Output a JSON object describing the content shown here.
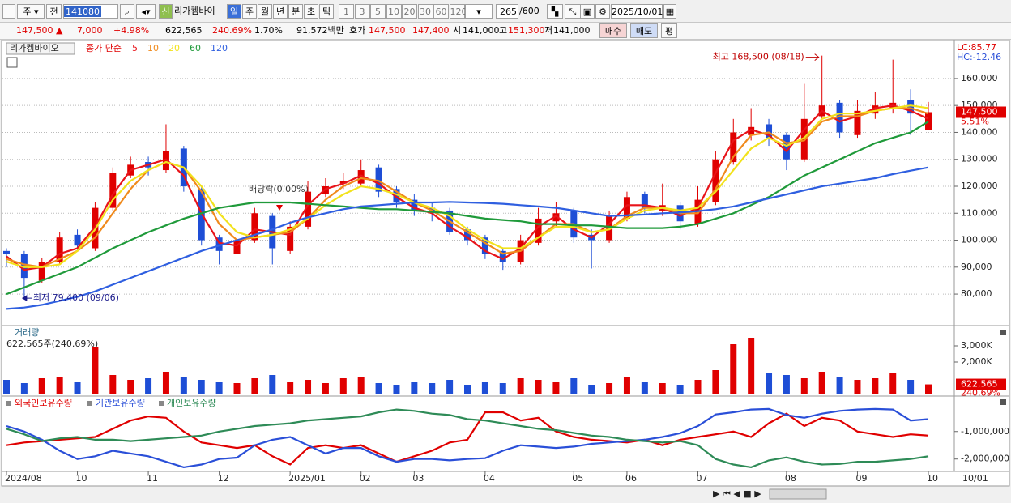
{
  "toolbar": {
    "period_button": "주",
    "view_button": "전",
    "code": "141080",
    "badge": "신",
    "name": "리가켐바이",
    "periods": [
      "일",
      "주",
      "월",
      "년",
      "분",
      "초",
      "틱"
    ],
    "intervals": [
      "1",
      "3",
      "5",
      "10",
      "20",
      "30",
      "60",
      "120"
    ],
    "count": "265",
    "count_max": "/600",
    "date": "2025/10/01"
  },
  "quote": {
    "price": "147,500 ▲",
    "change": "7,000",
    "change_pct": "+4.98%",
    "volume": "622,565",
    "volume_ratio": "240.69%",
    "turnover": "1.70%",
    "amount": "91,572백만",
    "ask_label": "호가",
    "ask": "147,500",
    "bid": "147,400",
    "open_label": "시",
    "open": "141,000",
    "high_label": "고",
    "high": "151,300",
    "low_label": "저",
    "low": "141,000",
    "buy": "매수",
    "sell": "매도",
    "avg": "평"
  },
  "chart_data": [
    {
      "type": "candlestick",
      "title": "리가켐바이오",
      "legend_title": "종가 단순",
      "categories": [
        "2024/08",
        null,
        null,
        null,
        "10",
        null,
        null,
        null,
        "11",
        null,
        null,
        null,
        "12",
        null,
        null,
        null,
        "2025/01",
        null,
        null,
        null,
        "02",
        null,
        null,
        "03",
        null,
        null,
        null,
        "04",
        null,
        null,
        null,
        null,
        "05",
        null,
        null,
        "06",
        null,
        null,
        null,
        "07",
        null,
        null,
        null,
        null,
        "08",
        null,
        null,
        null,
        "09",
        null,
        null,
        null,
        "10"
      ],
      "x_end_label": "10/01",
      "open": [
        96000,
        95000,
        85000,
        92000,
        102000,
        97000,
        112000,
        124000,
        129000,
        126000,
        134000,
        119000,
        101000,
        95000,
        100000,
        109000,
        96000,
        105000,
        117000,
        121000,
        121000,
        127000,
        119000,
        115000,
        112000,
        111000,
        104000,
        101000,
        96000,
        92000,
        99000,
        107000,
        111000,
        102000,
        100000,
        108000,
        117000,
        111000,
        113000,
        106000,
        114000,
        129000,
        139000,
        143000,
        139000,
        130000,
        146000,
        151000,
        139000,
        147000,
        149000,
        152000,
        141000
      ],
      "high": [
        97000,
        96000,
        93500,
        103000,
        104000,
        114000,
        127000,
        131000,
        131000,
        143000,
        135000,
        120000,
        102000,
        101000,
        112000,
        110000,
        107000,
        122000,
        123000,
        125000,
        130000,
        128000,
        120000,
        117000,
        114000,
        112000,
        105000,
        102000,
        97000,
        102000,
        112000,
        114000,
        112000,
        104000,
        111000,
        118000,
        118000,
        121000,
        114000,
        120000,
        133000,
        145000,
        149000,
        145000,
        140000,
        158000,
        168500,
        152000,
        152000,
        155000,
        167000,
        156000,
        151300
      ],
      "low": [
        90000,
        79400,
        84000,
        91000,
        96000,
        96000,
        111000,
        123000,
        124000,
        125000,
        118000,
        98000,
        91000,
        94000,
        99000,
        91000,
        95000,
        104000,
        116000,
        119000,
        120000,
        116000,
        112000,
        109000,
        107000,
        102000,
        98000,
        93000,
        89000,
        91000,
        98000,
        105000,
        99000,
        89500,
        99000,
        107000,
        110000,
        109000,
        104000,
        105000,
        113000,
        128000,
        137000,
        135000,
        126000,
        129000,
        145000,
        138000,
        138000,
        145000,
        147000,
        139000,
        141000
      ],
      "close": [
        95000,
        86000,
        92000,
        101000,
        98000,
        112000,
        125000,
        128000,
        127000,
        133000,
        120000,
        100000,
        96000,
        100000,
        110000,
        97000,
        105000,
        118000,
        120000,
        122000,
        126000,
        118000,
        114000,
        111000,
        110000,
        103000,
        100000,
        95000,
        92000,
        100000,
        108000,
        110000,
        101000,
        100000,
        109000,
        116000,
        112000,
        113000,
        107000,
        115000,
        130000,
        140000,
        142000,
        138000,
        130000,
        145000,
        150000,
        140000,
        148000,
        150000,
        151000,
        147000,
        147500
      ],
      "up_color": "#e00000",
      "down_color": "#1e4ed6",
      "series": [
        {
          "name": "5",
          "color": "#e8141a",
          "values": [
            94000,
            89000,
            90000,
            95000,
            97000,
            105000,
            117000,
            126000,
            128000,
            130000,
            124000,
            110000,
            99000,
            98000,
            104000,
            103000,
            102000,
            113000,
            119000,
            121000,
            124000,
            121000,
            116000,
            112000,
            110000,
            105000,
            101000,
            96000,
            93000,
            97000,
            105000,
            109000,
            104000,
            101000,
            106000,
            113000,
            113000,
            112000,
            109000,
            112000,
            125000,
            137000,
            141000,
            139000,
            133000,
            141000,
            148000,
            144000,
            146000,
            149000,
            150000,
            148000,
            145000
          ]
        },
        {
          "name": "10",
          "color": "#f08a1c",
          "values": [
            93000,
            91000,
            90000,
            93000,
            96000,
            101000,
            110000,
            119000,
            126000,
            129000,
            127000,
            118000,
            106000,
            100000,
            101000,
            102000,
            103000,
            108000,
            115000,
            120000,
            123000,
            122000,
            118000,
            114000,
            111000,
            107000,
            103000,
            99000,
            95000,
            96000,
            101000,
            106000,
            106000,
            103000,
            104000,
            109000,
            112000,
            112000,
            110000,
            110000,
            119000,
            131000,
            139000,
            140000,
            136000,
            137000,
            144000,
            146000,
            146000,
            148000,
            149000,
            149000,
            147000
          ]
        },
        {
          "name": "20",
          "color": "#f2e21c",
          "values": [
            92000,
            90000,
            90000,
            91000,
            96000,
            104000,
            115000,
            122000,
            126000,
            129000,
            127000,
            120000,
            110000,
            103000,
            101000,
            102000,
            104000,
            108000,
            113000,
            117000,
            120000,
            119000,
            117000,
            114000,
            112000,
            109000,
            104000,
            100000,
            97000,
            97000,
            101000,
            105000,
            105000,
            103000,
            104000,
            108000,
            111000,
            112000,
            111000,
            112000,
            118000,
            126000,
            134000,
            138000,
            135000,
            138000,
            145000,
            147000,
            147000,
            148000,
            149000,
            150000,
            149000
          ]
        },
        {
          "name": "60",
          "color": "#1f9a3a",
          "values": [
            80000,
            82500,
            85000,
            87500,
            90000,
            93500,
            97000,
            100000,
            103000,
            105500,
            108000,
            110000,
            112000,
            113000,
            114000,
            114000,
            114000,
            113500,
            113000,
            112500,
            112000,
            111500,
            111500,
            111000,
            110500,
            110000,
            109000,
            108000,
            107500,
            107000,
            106000,
            106000,
            105500,
            105500,
            105000,
            104500,
            104500,
            104500,
            105000,
            106000,
            108000,
            110000,
            113000,
            116000,
            120000,
            124000,
            127000,
            130000,
            133000,
            136000,
            138000,
            140000,
            144000
          ]
        },
        {
          "name": "120",
          "color": "#2f5fe0",
          "values": [
            74500,
            75000,
            76000,
            77500,
            79000,
            81000,
            83500,
            86000,
            88500,
            91000,
            93500,
            96000,
            98000,
            100000,
            102000,
            104000,
            106500,
            108500,
            110000,
            111500,
            112500,
            113000,
            113500,
            114000,
            114000,
            114200,
            114000,
            113800,
            113500,
            113000,
            112500,
            112000,
            111000,
            110000,
            109000,
            109200,
            109500,
            110000,
            110300,
            110800,
            111500,
            112500,
            114000,
            115500,
            117000,
            118500,
            120000,
            121000,
            122000,
            123000,
            124500,
            125800,
            127000
          ]
        }
      ],
      "ylim": [
        68900,
        173500
      ],
      "yticks": [
        {
          "value": 80000,
          "label": "80,000"
        },
        {
          "value": 90000,
          "label": "90,000"
        },
        {
          "value": 100000,
          "label": "100,000"
        },
        {
          "value": 110000,
          "label": "110,000"
        },
        {
          "value": 120000,
          "label": "120,000"
        },
        {
          "value": 130000,
          "label": "130,000"
        },
        {
          "value": 140000,
          "label": "140,000"
        },
        {
          "value": 150000,
          "label": "150,000"
        },
        {
          "value": 160000,
          "label": "160,000"
        }
      ],
      "grid": true,
      "high_label": "최고 168,500 (08/18)",
      "low_label": "최저 79,400 (09/06)",
      "ex_dividend_label": "배당락(0.00%)",
      "lc_label": "LC:85.77",
      "hc_label": "HC:-12.46",
      "last_label": "147,500",
      "last_change": "5.51%"
    },
    {
      "type": "bar",
      "title": "거래량",
      "subtitle": "622,565주(240.69%)",
      "values": [
        900000,
        700000,
        1000000,
        1100000,
        800000,
        2900000,
        1200000,
        900000,
        1000000,
        1400000,
        1100000,
        900000,
        800000,
        700000,
        1000000,
        1200000,
        800000,
        900000,
        700000,
        1000000,
        1100000,
        700000,
        600000,
        800000,
        700000,
        900000,
        600000,
        800000,
        700000,
        1000000,
        900000,
        800000,
        1000000,
        600000,
        700000,
        1100000,
        800000,
        700000,
        600000,
        900000,
        1500000,
        3100000,
        3500000,
        1300000,
        1200000,
        1000000,
        1400000,
        1100000,
        900000,
        1000000,
        1300000,
        900000,
        622565
      ],
      "up_color": "#e00000",
      "down_color": "#1e4ed6",
      "ylim": [
        0,
        4100000
      ],
      "yticks": [
        {
          "value": 2000000,
          "label": "2,000K"
        },
        {
          "value": 3000000,
          "label": "3,000K"
        }
      ],
      "last_label": "622,565",
      "last_change": "240.69%"
    },
    {
      "type": "line",
      "series": [
        {
          "name": "외국인보유수량",
          "color": "#e00000",
          "values": [
            -1500000,
            -1400000,
            -1350000,
            -1300000,
            -1250000,
            -1200000,
            -900000,
            -600000,
            -450000,
            -500000,
            -1000000,
            -1400000,
            -1500000,
            -1600000,
            -1500000,
            -1900000,
            -2200000,
            -1600000,
            -1500000,
            -1600000,
            -1500000,
            -1800000,
            -2100000,
            -1900000,
            -1700000,
            -1400000,
            -1300000,
            -300000,
            -300000,
            -600000,
            -500000,
            -1000000,
            -1200000,
            -1300000,
            -1350000,
            -1400000,
            -1300000,
            -1500000,
            -1300000,
            -1200000,
            -1100000,
            -1000000,
            -1200000,
            -700000,
            -350000,
            -800000,
            -500000,
            -600000,
            -1000000,
            -1100000,
            -1200000,
            -1100000,
            -1150000
          ]
        },
        {
          "name": "기관보유수량",
          "color": "#2a4fd8",
          "values": [
            -800000,
            -1000000,
            -1300000,
            -1700000,
            -2000000,
            -1900000,
            -1700000,
            -1800000,
            -1900000,
            -2100000,
            -2300000,
            -2200000,
            -2000000,
            -1950000,
            -1500000,
            -1300000,
            -1200000,
            -1500000,
            -1800000,
            -1600000,
            -1600000,
            -1900000,
            -2100000,
            -2000000,
            -2000000,
            -2050000,
            -2000000,
            -1970000,
            -1700000,
            -1500000,
            -1550000,
            -1600000,
            -1550000,
            -1450000,
            -1400000,
            -1350000,
            -1300000,
            -1200000,
            -1060000,
            -800000,
            -380000,
            -300000,
            -200000,
            -180000,
            -400000,
            -500000,
            -350000,
            -250000,
            -200000,
            -180000,
            -200000,
            -600000,
            -550000
          ]
        },
        {
          "name": "개인보유수량",
          "color": "#2e8b57",
          "values": [
            -900000,
            -1100000,
            -1350000,
            -1250000,
            -1200000,
            -1300000,
            -1300000,
            -1350000,
            -1300000,
            -1250000,
            -1200000,
            -1150000,
            -1000000,
            -900000,
            -800000,
            -750000,
            -700000,
            -600000,
            -550000,
            -500000,
            -450000,
            -300000,
            -200000,
            -250000,
            -350000,
            -400000,
            -550000,
            -600000,
            -700000,
            -800000,
            -900000,
            -950000,
            -1050000,
            -1150000,
            -1200000,
            -1300000,
            -1350000,
            -1400000,
            -1350000,
            -1500000,
            -2000000,
            -2200000,
            -2300000,
            -2050000,
            -1940000,
            -2100000,
            -2200000,
            -2180000,
            -2100000,
            -2100000,
            -2050000,
            -2000000,
            -1900000
          ]
        }
      ],
      "ylim": [
        -2450000,
        200000
      ],
      "yticks": [
        {
          "value": -2000000,
          "label": "-2,000,000"
        },
        {
          "value": -1000000,
          "label": "-1,000,000"
        }
      ]
    }
  ]
}
